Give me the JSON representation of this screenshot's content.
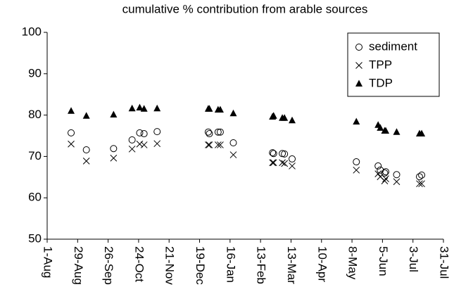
{
  "chart_data": {
    "type": "scatter",
    "title": "cumulative % contribution from arable sources",
    "x": [
      22,
      36,
      61,
      78,
      85,
      89,
      101,
      148,
      149,
      157,
      159,
      171,
      207,
      208,
      216,
      218,
      225,
      284,
      304,
      306,
      310,
      311,
      321,
      342,
      344
    ],
    "series": [
      {
        "name": "sediment",
        "color": "#000000",
        "marker": "circle",
        "values": [
          75.7,
          71.6,
          71.9,
          74.0,
          75.7,
          75.5,
          76.0,
          75.9,
          75.5,
          75.9,
          75.9,
          73.3,
          70.9,
          70.7,
          70.7,
          70.6,
          69.4,
          68.7,
          67.7,
          66.7,
          66.0,
          66.3,
          65.6,
          65.1,
          65.5
        ]
      },
      {
        "name": "TPP",
        "color": "#000000",
        "marker": "x",
        "values": [
          73.0,
          68.9,
          69.6,
          71.8,
          73.0,
          72.8,
          73.1,
          72.8,
          72.8,
          72.8,
          72.8,
          70.4,
          68.5,
          68.5,
          68.5,
          68.3,
          67.7,
          66.7,
          65.8,
          65.1,
          64.1,
          64.6,
          63.9,
          63.4,
          63.4
        ]
      },
      {
        "name": "TDP",
        "color": "#000000",
        "marker": "triangle",
        "values": [
          81.0,
          79.8,
          80.1,
          81.6,
          81.8,
          81.5,
          81.6,
          81.5,
          81.5,
          81.3,
          81.3,
          80.4,
          79.6,
          79.8,
          79.3,
          79.3,
          78.7,
          78.4,
          77.6,
          76.9,
          76.2,
          76.2,
          75.9,
          75.5,
          75.5
        ]
      }
    ],
    "xlim": [
      0,
      364
    ],
    "xticks": [
      {
        "value": 0,
        "label": "1-Aug"
      },
      {
        "value": 28,
        "label": "29-Aug"
      },
      {
        "value": 56,
        "label": "26-Sep"
      },
      {
        "value": 84,
        "label": "24-Oct"
      },
      {
        "value": 112,
        "label": "21-Nov"
      },
      {
        "value": 140,
        "label": "19-Dec"
      },
      {
        "value": 168,
        "label": "16-Jan"
      },
      {
        "value": 196,
        "label": "13-Feb"
      },
      {
        "value": 224,
        "label": "13-Mar"
      },
      {
        "value": 252,
        "label": "10-Apr"
      },
      {
        "value": 280,
        "label": "8-May"
      },
      {
        "value": 308,
        "label": "5-Jun"
      },
      {
        "value": 336,
        "label": "3-Jul"
      },
      {
        "value": 364,
        "label": "31-Jul"
      }
    ],
    "ylim": [
      50,
      100
    ],
    "yticks": [
      50,
      60,
      70,
      80,
      90,
      100
    ],
    "grid": false,
    "legend": "top-right"
  }
}
